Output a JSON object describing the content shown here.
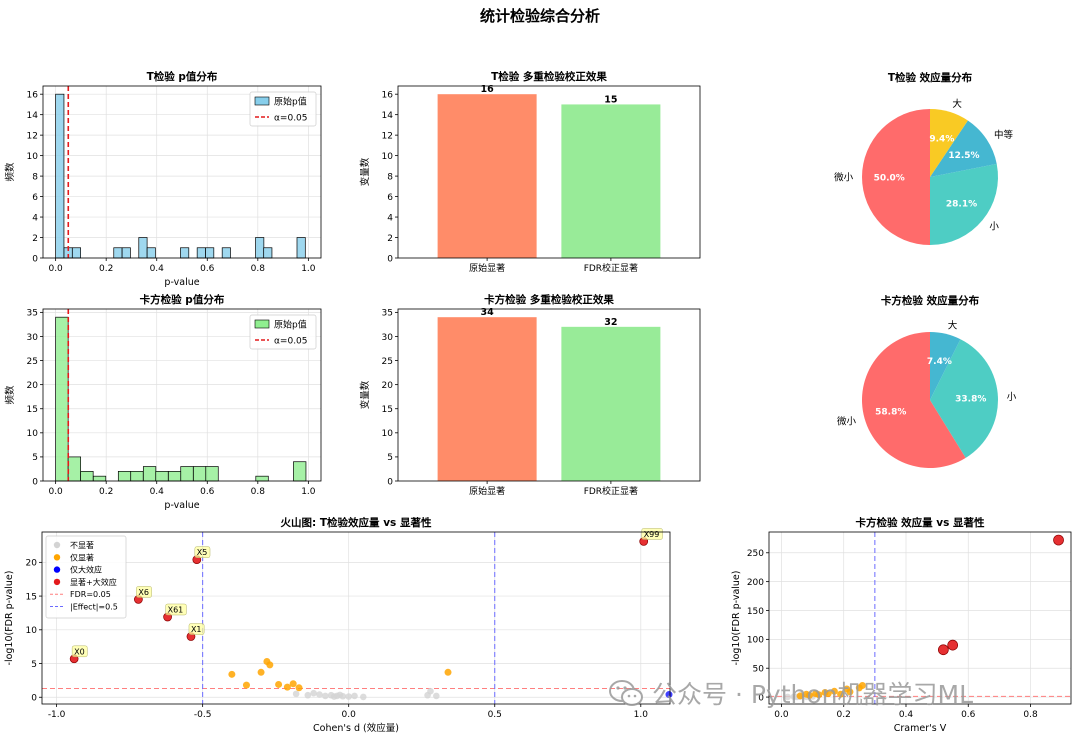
{
  "title": "统计检验综合分析",
  "watermark": "公众号 · Python机器学习ML",
  "colors": {
    "hist_t": "#87ceeb",
    "hist_chi": "#90ee90",
    "bar_orig": "#ff8c69",
    "bar_fdr": "#98eb98",
    "alpha_line": "#e41a1c",
    "pie_tiny": "#ff6b6b",
    "pie_small": "#4ecdc4",
    "pie_medium": "#45b7d1",
    "pie_large": "#f9ca24",
    "ns": "#d3d3d3",
    "sig_only": "#ffa500",
    "large_only": "#0000ff",
    "sig_large": "#e31a1c",
    "fdr_line": "#ff7f7f",
    "effect_line": "#6b6bff"
  },
  "chart_data": [
    {
      "id": "t_hist",
      "type": "bar",
      "title": "T检验 p值分布",
      "xlabel": "p-value",
      "ylabel": "频数",
      "xlim": [
        -0.05,
        1.05
      ],
      "ylim": [
        0,
        16.8
      ],
      "xticks": [
        0.0,
        0.2,
        0.4,
        0.6,
        0.8,
        1.0
      ],
      "xtick_labels": [
        "0.0",
        "0.2",
        "0.4",
        "0.6",
        "0.8",
        "1.0"
      ],
      "yticks": [
        0,
        2,
        4,
        6,
        8,
        10,
        12,
        14,
        16
      ],
      "bin_width": 0.0329,
      "bin_starts": [
        0.0,
        0.033,
        0.066,
        0.23,
        0.263,
        0.329,
        0.362,
        0.494,
        0.56,
        0.593,
        0.659,
        0.791,
        0.823,
        0.955
      ],
      "counts": [
        16,
        1,
        1,
        1,
        1,
        2,
        1,
        1,
        1,
        1,
        1,
        2,
        1,
        2
      ],
      "alpha": 0.05,
      "legend": [
        "原始p值",
        "α=0.05"
      ]
    },
    {
      "id": "t_bar",
      "type": "bar",
      "title": "T检验 多重检验校正效果",
      "ylabel": "变量数",
      "categories": [
        "原始显著",
        "FDR校正显著"
      ],
      "values": [
        16,
        15
      ],
      "ylim": [
        0,
        16.8
      ],
      "yticks": [
        0,
        2,
        4,
        6,
        8,
        10,
        12,
        14,
        16
      ]
    },
    {
      "id": "t_pie",
      "type": "pie",
      "title": "T检验 效应量分布",
      "labels": [
        "微小",
        "小",
        "中等",
        "大"
      ],
      "values": [
        50.0,
        28.1,
        12.5,
        9.4
      ],
      "pct_labels": [
        "50.0%",
        "28.1%",
        "12.5%",
        "9.4%"
      ]
    },
    {
      "id": "chi_hist",
      "type": "bar",
      "title": "卡方检验 p值分布",
      "xlabel": "p-value",
      "ylabel": "频数",
      "xlim": [
        -0.05,
        1.05
      ],
      "ylim": [
        0,
        35.7
      ],
      "xticks": [
        0.0,
        0.2,
        0.4,
        0.6,
        0.8,
        1.0
      ],
      "xtick_labels": [
        "0.0",
        "0.2",
        "0.4",
        "0.6",
        "0.8",
        "1.0"
      ],
      "yticks": [
        0,
        5,
        10,
        15,
        20,
        25,
        30,
        35
      ],
      "bin_width": 0.0495,
      "bin_starts": [
        0.0,
        0.0495,
        0.099,
        0.149,
        0.248,
        0.297,
        0.347,
        0.396,
        0.446,
        0.495,
        0.545,
        0.594,
        0.792,
        0.941
      ],
      "counts": [
        34,
        5,
        2,
        1,
        2,
        2,
        3,
        2,
        2,
        3,
        3,
        3,
        1,
        4
      ],
      "alpha": 0.05,
      "legend": [
        "原始p值",
        "α=0.05"
      ]
    },
    {
      "id": "chi_bar",
      "type": "bar",
      "title": "卡方检验 多重检验校正效果",
      "ylabel": "变量数",
      "categories": [
        "原始显著",
        "FDR校正显著"
      ],
      "values": [
        34,
        32
      ],
      "ylim": [
        0,
        35.7
      ],
      "yticks": [
        0,
        5,
        10,
        15,
        20,
        25,
        30,
        35
      ]
    },
    {
      "id": "chi_pie",
      "type": "pie",
      "title": "卡方检验 效应量分布",
      "labels": [
        "微小",
        "小",
        "大"
      ],
      "values": [
        58.8,
        33.8,
        7.4
      ],
      "pct_labels": [
        "58.8%",
        "33.8%",
        "7.4%"
      ]
    },
    {
      "id": "volcano",
      "type": "scatter",
      "title": "火山图: T检验效应量 vs 显著性",
      "xlabel": "Cohen's d (效应量)",
      "ylabel": "-log10(FDR p-value)",
      "xlim": [
        -1.05,
        1.1
      ],
      "ylim": [
        -1.0,
        24.5
      ],
      "xticks": [
        -1.0,
        -0.5,
        0.0,
        0.5,
        1.0
      ],
      "xtick_labels": [
        "-1.0",
        "-0.5",
        "0.0",
        "0.5",
        "1.0"
      ],
      "yticks": [
        0,
        5,
        10,
        15,
        20
      ],
      "fdr_threshold": 1.3,
      "effect_threshold": 0.5,
      "legend": [
        "不显著",
        "仅显著",
        "仅大效应",
        "显著+大效应",
        "FDR=0.05",
        "|Effect|=0.5"
      ],
      "not_significant": [
        [
          -0.18,
          0.5
        ],
        [
          -0.14,
          0.3
        ],
        [
          -0.12,
          0.6
        ],
        [
          -0.1,
          0.4
        ],
        [
          -0.08,
          0.2
        ],
        [
          -0.06,
          0.3
        ],
        [
          -0.05,
          0.1
        ],
        [
          -0.04,
          0.2
        ],
        [
          -0.03,
          0.35
        ],
        [
          -0.02,
          0.15
        ],
        [
          0.0,
          0.1
        ],
        [
          0.02,
          0.2
        ],
        [
          0.05,
          0.05
        ],
        [
          0.27,
          0.3
        ],
        [
          0.28,
          0.9
        ],
        [
          0.3,
          0.2
        ]
      ],
      "significant_only": [
        [
          -0.4,
          3.4
        ],
        [
          -0.35,
          1.8
        ],
        [
          -0.3,
          3.7
        ],
        [
          -0.28,
          5.3
        ],
        [
          -0.27,
          4.8
        ],
        [
          -0.24,
          1.9
        ],
        [
          -0.21,
          1.5
        ],
        [
          -0.19,
          2.0
        ],
        [
          -0.17,
          1.4
        ],
        [
          0.34,
          3.7
        ]
      ],
      "large_effect_only": [
        [
          1.1,
          0.4
        ]
      ],
      "significant_and_large": [
        [
          -0.94,
          5.7,
          "X0"
        ],
        [
          -0.72,
          14.5,
          "X6"
        ],
        [
          -0.62,
          11.9,
          "X61"
        ],
        [
          -0.54,
          9.0,
          "X1"
        ],
        [
          -0.52,
          20.4,
          "X5"
        ],
        [
          1.01,
          23.1,
          "X99"
        ]
      ]
    },
    {
      "id": "chi_scatter",
      "type": "scatter",
      "title": "卡方检验 效应量 vs 显著性",
      "xlabel": "Cramer's V",
      "ylabel": "-log10(FDR p-value)",
      "xlim": [
        -0.04,
        0.93
      ],
      "ylim": [
        -12,
        286
      ],
      "xticks": [
        0.0,
        0.2,
        0.4,
        0.6,
        0.8
      ],
      "xtick_labels": [
        "0.0",
        "0.2",
        "0.4",
        "0.6",
        "0.8"
      ],
      "yticks": [
        0,
        50,
        100,
        150,
        200,
        250
      ],
      "fdr_threshold": 1.3,
      "effect_threshold": 0.3,
      "not_significant": [
        [
          0.02,
          0.3
        ],
        [
          0.04,
          0.6
        ],
        [
          0.05,
          0.2
        ],
        [
          0.06,
          0.9
        ],
        [
          0.08,
          0.5
        ],
        [
          0.1,
          1.0
        ]
      ],
      "significant_only": [
        [
          0.06,
          2
        ],
        [
          0.08,
          5
        ],
        [
          0.09,
          3
        ],
        [
          0.11,
          6
        ],
        [
          0.12,
          4
        ],
        [
          0.14,
          8
        ],
        [
          0.15,
          6
        ],
        [
          0.17,
          10
        ],
        [
          0.19,
          5
        ],
        [
          0.21,
          14
        ],
        [
          0.22,
          9
        ],
        [
          0.25,
          16
        ],
        [
          0.26,
          20
        ]
      ],
      "significant_and_large": [
        [
          0.52,
          82
        ],
        [
          0.55,
          90
        ],
        [
          0.89,
          272
        ]
      ]
    }
  ]
}
